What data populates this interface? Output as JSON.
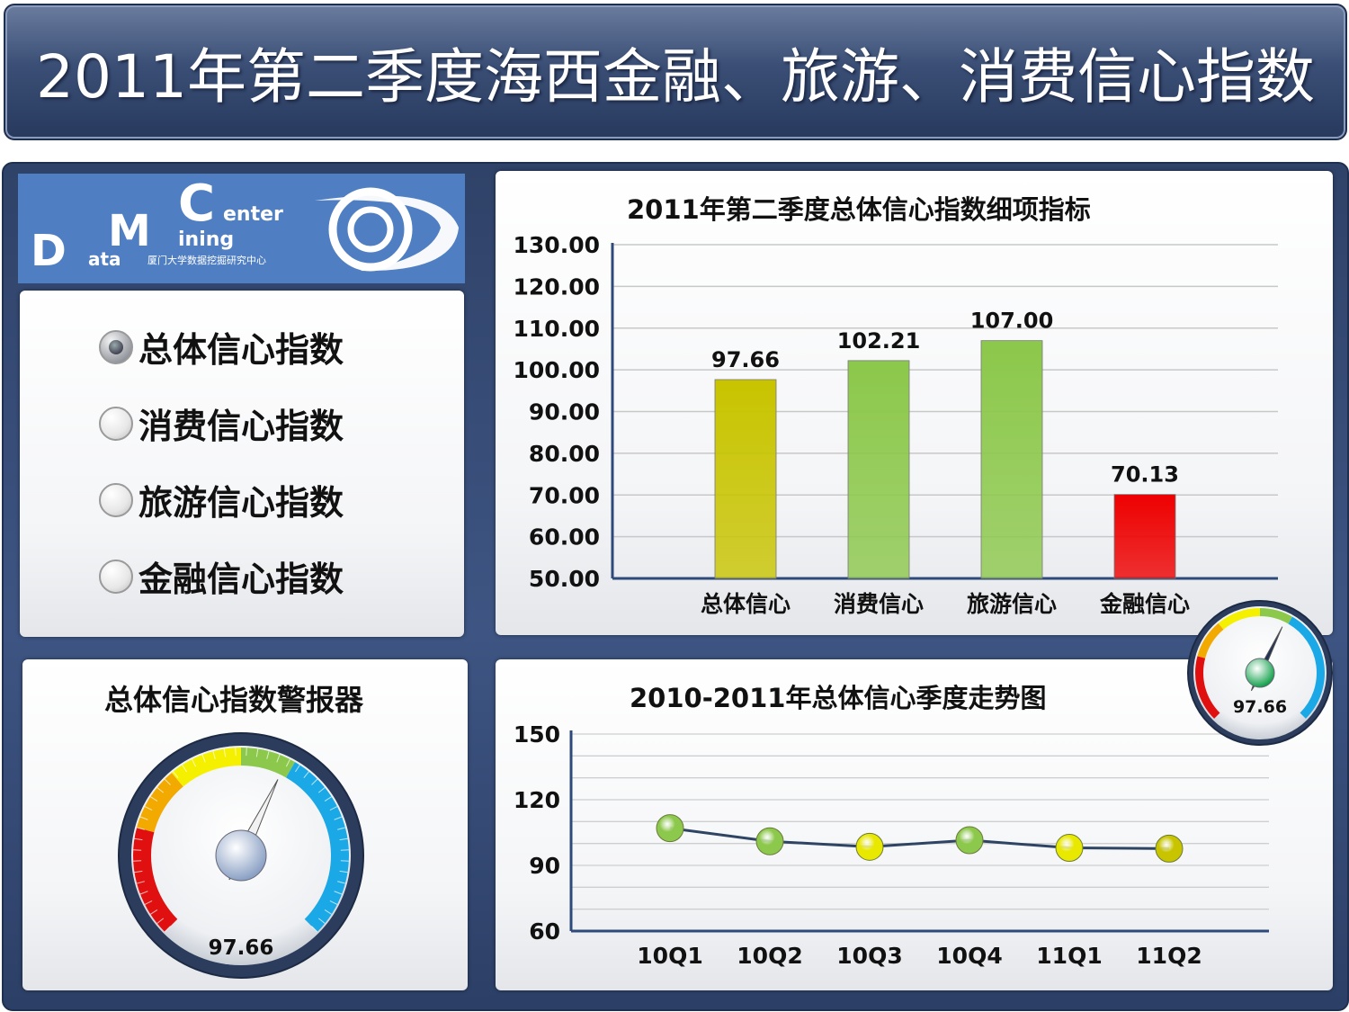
{
  "header": {
    "title": "2011年第二季度海西金融、旅游、消费信心指数"
  },
  "logo": {
    "big_c": "C",
    "enter": "enter",
    "big_m": "M",
    "ining": "ining",
    "big_d": "D",
    "ata": "ata",
    "sub": "厦门大学数据挖掘研究中心"
  },
  "radio_options": [
    {
      "label": "总体信心指数",
      "checked": true
    },
    {
      "label": "消费信心指数",
      "checked": false
    },
    {
      "label": "旅游信心指数",
      "checked": false
    },
    {
      "label": "金融信心指数",
      "checked": false
    }
  ],
  "gauge_main": {
    "title": "总体信心指数警报器",
    "value": 97.66,
    "value_label": "97.66"
  },
  "gauge_mini": {
    "value": 97.66,
    "value_label": "97.66"
  },
  "chart_data": [
    {
      "type": "bar",
      "title": "2011年第二季度总体信心指数细项指标",
      "categories": [
        "总体信心",
        "消费信心",
        "旅游信心",
        "金融信心"
      ],
      "values": [
        97.66,
        102.21,
        107.0,
        70.13
      ],
      "value_labels": [
        "97.66",
        "102.21",
        "107.00",
        "70.13"
      ],
      "colors": [
        "#c8c400",
        "#8cc84b",
        "#8cc84b",
        "#ee0000"
      ],
      "ylim": [
        50,
        130
      ],
      "yticks": [
        "50.00",
        "60.00",
        "70.00",
        "80.00",
        "90.00",
        "100.00",
        "110.00",
        "120.00",
        "130.00"
      ],
      "grid": true
    },
    {
      "type": "line",
      "title": "2010-2011年总体信心季度走势图",
      "categories": [
        "10Q1",
        "10Q2",
        "10Q3",
        "10Q4",
        "11Q1",
        "11Q2"
      ],
      "values": [
        107,
        101,
        98.5,
        101.5,
        98,
        97.66
      ],
      "marker_colors": [
        "#8cc84b",
        "#8cc84b",
        "#e8e800",
        "#8cc84b",
        "#e8e800",
        "#c8c400"
      ],
      "ylim": [
        60,
        150
      ],
      "yticks": [
        "60",
        "90",
        "120",
        "150"
      ],
      "grid": true
    }
  ]
}
